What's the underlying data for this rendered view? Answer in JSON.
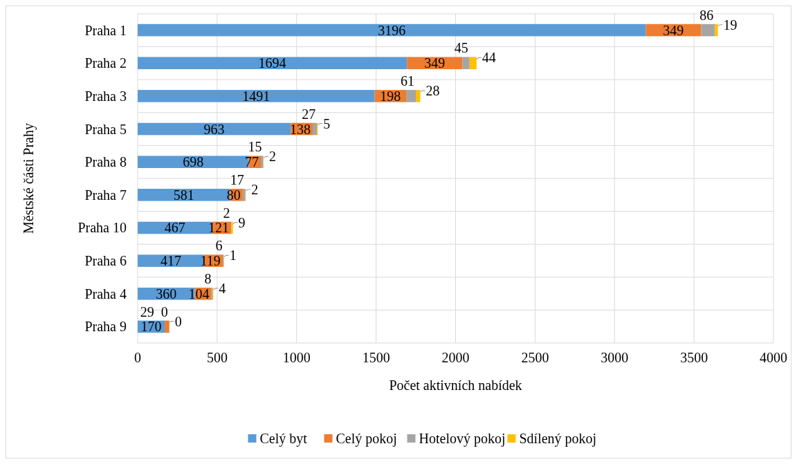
{
  "chart_data": {
    "type": "bar",
    "orientation": "horizontal",
    "stacked": true,
    "xlabel": "Počet aktivních nabídek",
    "ylabel": "Městské části Prahy",
    "categories": [
      "Praha 1",
      "Praha 2",
      "Praha 3",
      "Praha 5",
      "Praha 8",
      "Praha 7",
      "Praha 10",
      "Praha 6",
      "Praha 4",
      "Praha 9"
    ],
    "series": [
      {
        "name": "Celý byt",
        "color": "#5b9bd5",
        "values": [
          3196,
          1694,
          1491,
          963,
          698,
          581,
          467,
          417,
          360,
          170
        ]
      },
      {
        "name": "Celý pokoj",
        "color": "#ed7d31",
        "values": [
          349,
          349,
          198,
          138,
          77,
          80,
          121,
          119,
          104,
          29
        ]
      },
      {
        "name": "Hotelový pokoj",
        "color": "#a5a5a5",
        "values": [
          86,
          45,
          61,
          27,
          15,
          17,
          2,
          6,
          8,
          0
        ]
      },
      {
        "name": "Sdílený pokoj",
        "color": "#ffc000",
        "values": [
          19,
          44,
          28,
          5,
          2,
          2,
          9,
          1,
          4,
          0
        ]
      }
    ],
    "xlim": [
      0,
      4000
    ],
    "xticks": [
      0,
      500,
      1000,
      1500,
      2000,
      2500,
      3000,
      3500,
      4000
    ],
    "grid": true,
    "legend": "bottom",
    "data_labels": true
  }
}
